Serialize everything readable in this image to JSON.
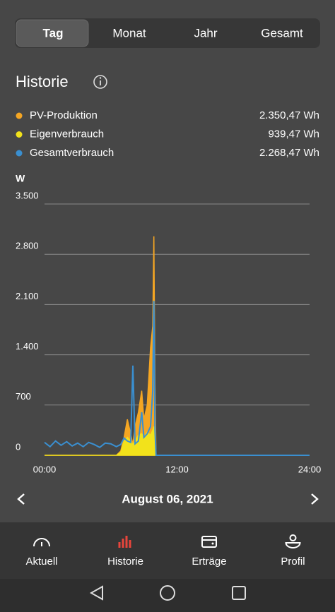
{
  "tabs": [
    "Tag",
    "Monat",
    "Jahr",
    "Gesamt"
  ],
  "selected_tab": 0,
  "section_title": "Historie",
  "chart_data": {
    "type": "area",
    "y_unit": "W",
    "x": [
      0,
      0.5,
      1,
      1.5,
      2,
      2.5,
      3,
      3.5,
      4,
      4.5,
      5,
      5.5,
      6,
      6.5,
      6.9,
      7.2,
      7.5,
      7.8,
      8,
      8.2,
      8.5,
      8.8,
      9,
      9.3,
      9.6,
      9.8,
      9.9,
      10,
      10.1,
      24
    ],
    "xlim": [
      0,
      24
    ],
    "xticks": [
      {
        "value": 0,
        "label": "00:00"
      },
      {
        "value": 12,
        "label": "12:00"
      },
      {
        "value": 24,
        "label": "24:00"
      }
    ],
    "ylim": [
      0,
      3500
    ],
    "yticks": [
      0,
      700,
      {
        "value": 1400,
        "label": "1.400"
      },
      {
        "value": 2100,
        "label": "2.100"
      },
      {
        "value": 2800,
        "label": "2.800"
      },
      {
        "value": 3500,
        "label": "3.500"
      }
    ],
    "grid": true,
    "series": [
      {
        "name": "PV-Produktion",
        "color": "#f5a623",
        "total": "2.350,47 Wh",
        "fill": true,
        "values": [
          0,
          0,
          0,
          0,
          0,
          0,
          0,
          0,
          0,
          0,
          0,
          0,
          0,
          0,
          60,
          250,
          500,
          300,
          150,
          400,
          600,
          900,
          500,
          700,
          1500,
          1800,
          3050,
          1000,
          0,
          0
        ]
      },
      {
        "name": "Eigenverbrauch",
        "color": "#f2e21b",
        "total": "939,47 Wh",
        "fill": true,
        "values": [
          0,
          0,
          0,
          0,
          0,
          0,
          0,
          0,
          0,
          0,
          0,
          0,
          0,
          0,
          40,
          200,
          250,
          200,
          150,
          200,
          280,
          300,
          250,
          320,
          280,
          350,
          400,
          300,
          0,
          0
        ]
      },
      {
        "name": "Gesamtverbrauch",
        "color": "#3a8fd0",
        "total": "2.268,47 Wh",
        "fill": false,
        "values": [
          180,
          120,
          200,
          140,
          190,
          130,
          170,
          120,
          180,
          150,
          110,
          170,
          160,
          120,
          150,
          240,
          200,
          180,
          1250,
          160,
          200,
          600,
          250,
          300,
          400,
          900,
          2150,
          350,
          0,
          0
        ]
      }
    ]
  },
  "date": "August 06, 2021",
  "nav": [
    "Aktuell",
    "Historie",
    "Erträge",
    "Profil"
  ],
  "active_nav": 1
}
